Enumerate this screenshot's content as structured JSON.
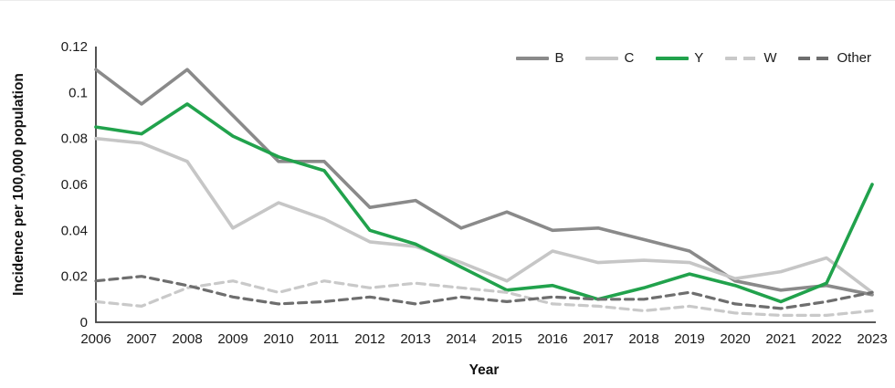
{
  "chart_data": {
    "type": "line",
    "title": "",
    "xlabel": "Year",
    "ylabel": "Incidence per 100,000 population",
    "ylim": [
      0,
      0.12
    ],
    "y_ticks": [
      0,
      0.02,
      0.04,
      0.06,
      0.08,
      0.1,
      0.12
    ],
    "y_tick_labels": [
      "0",
      "0.02",
      "0.04",
      "0.06",
      "0.08",
      "0.1",
      "0.12"
    ],
    "grid": false,
    "legend_position": "top-right",
    "axis_color": "#404040",
    "categories": [
      "2006",
      "2007",
      "2008",
      "2009",
      "2010",
      "2011",
      "2012",
      "2013",
      "2014",
      "2015",
      "2016",
      "2017",
      "2018",
      "2019",
      "2020",
      "2021",
      "2022",
      "2023"
    ],
    "series": [
      {
        "name": "B",
        "color": "#8a8a8a",
        "style": "solid",
        "values": [
          0.11,
          0.095,
          0.11,
          0.09,
          0.07,
          0.07,
          0.05,
          0.053,
          0.041,
          0.048,
          0.04,
          0.041,
          0.036,
          0.031,
          0.018,
          0.014,
          0.016,
          0.012
        ]
      },
      {
        "name": "C",
        "color": "#c6c6c6",
        "style": "solid",
        "values": [
          0.08,
          0.078,
          0.07,
          0.041,
          0.052,
          0.045,
          0.035,
          0.033,
          0.026,
          0.018,
          0.031,
          0.026,
          0.027,
          0.026,
          0.019,
          0.022,
          0.028,
          0.013
        ]
      },
      {
        "name": "Y",
        "color": "#21a24c",
        "style": "solid",
        "values": [
          0.085,
          0.082,
          0.095,
          0.081,
          0.072,
          0.066,
          0.04,
          0.034,
          0.024,
          0.014,
          0.016,
          0.01,
          0.015,
          0.021,
          0.016,
          0.009,
          0.017,
          0.06
        ]
      },
      {
        "name": "W",
        "color": "#c9c9c9",
        "style": "dashed",
        "values": [
          0.009,
          0.007,
          0.015,
          0.018,
          0.013,
          0.018,
          0.015,
          0.017,
          0.015,
          0.013,
          0.008,
          0.007,
          0.005,
          0.007,
          0.004,
          0.003,
          0.003,
          0.005
        ]
      },
      {
        "name": "Other",
        "color": "#6e6e6e",
        "style": "dashed",
        "values": [
          0.018,
          0.02,
          0.016,
          0.011,
          0.008,
          0.009,
          0.011,
          0.008,
          0.011,
          0.009,
          0.011,
          0.01,
          0.01,
          0.013,
          0.008,
          0.006,
          0.009,
          0.013
        ]
      }
    ]
  }
}
